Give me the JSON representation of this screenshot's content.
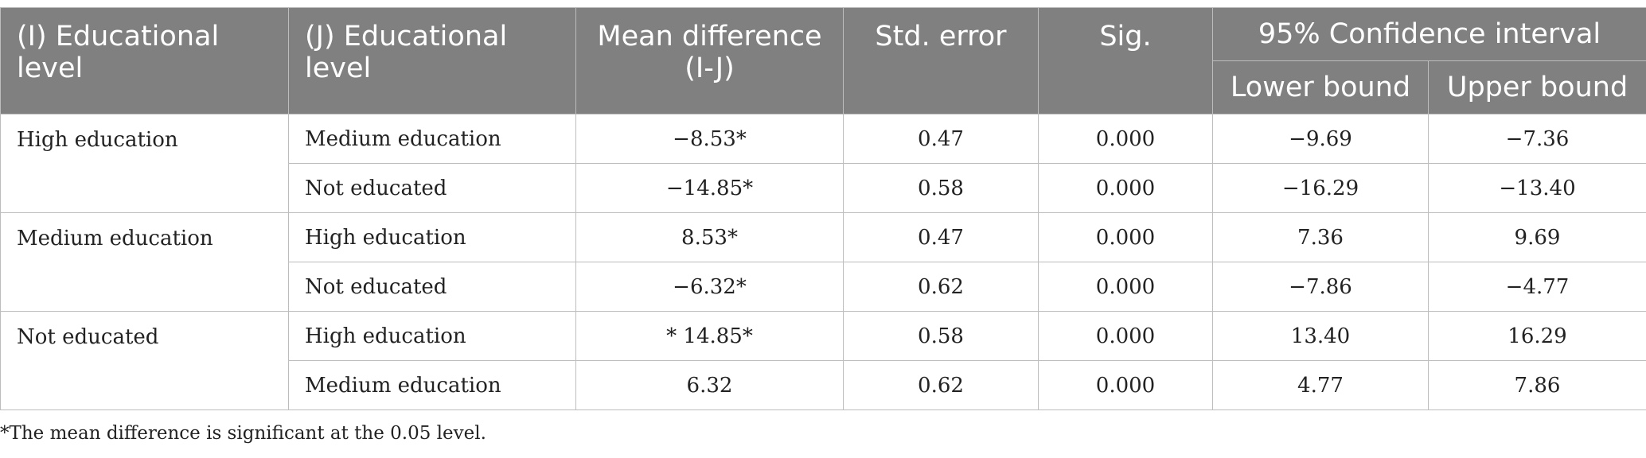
{
  "header": {
    "col_i": "(I) Educational level",
    "col_j": "(J) Educational level",
    "col_mean_diff": "Mean difference (I-J)",
    "col_std_error": "Std. error",
    "col_sig": "Sig.",
    "col_ci": "95% Confidence interval",
    "col_lower": "Lower bound",
    "col_upper": "Upper bound"
  },
  "groups": [
    {
      "i_level": "High education",
      "rows": [
        {
          "j_level": "Medium education",
          "mean_diff": "−8.53*",
          "std_error": "0.47",
          "sig": "0.000",
          "lower": "−9.69",
          "upper": "−7.36"
        },
        {
          "j_level": "Not educated",
          "mean_diff": "−14.85*",
          "std_error": "0.58",
          "sig": "0.000",
          "lower": "−16.29",
          "upper": "−13.40"
        }
      ]
    },
    {
      "i_level": "Medium education",
      "rows": [
        {
          "j_level": "High education",
          "mean_diff": "8.53*",
          "std_error": "0.47",
          "sig": "0.000",
          "lower": "7.36",
          "upper": "9.69"
        },
        {
          "j_level": "Not educated",
          "mean_diff": "−6.32*",
          "std_error": "0.62",
          "sig": "0.000",
          "lower": "−7.86",
          "upper": "−4.77"
        }
      ]
    },
    {
      "i_level": "Not educated",
      "rows": [
        {
          "j_level": "High education",
          "mean_diff": "* 14.85*",
          "std_error": "0.58",
          "sig": "0.000",
          "lower": "13.40",
          "upper": "16.29"
        },
        {
          "j_level": "Medium education",
          "mean_diff": "6.32",
          "std_error": "0.62",
          "sig": "0.000",
          "lower": "4.77",
          "upper": "7.86"
        }
      ]
    }
  ],
  "footnote": "*The mean difference is significant at the 0.05 level.",
  "colors": {
    "header_bg": "#808080",
    "header_text": "#ffffff",
    "border": "#bdbdbd",
    "body_text": "#222222"
  }
}
